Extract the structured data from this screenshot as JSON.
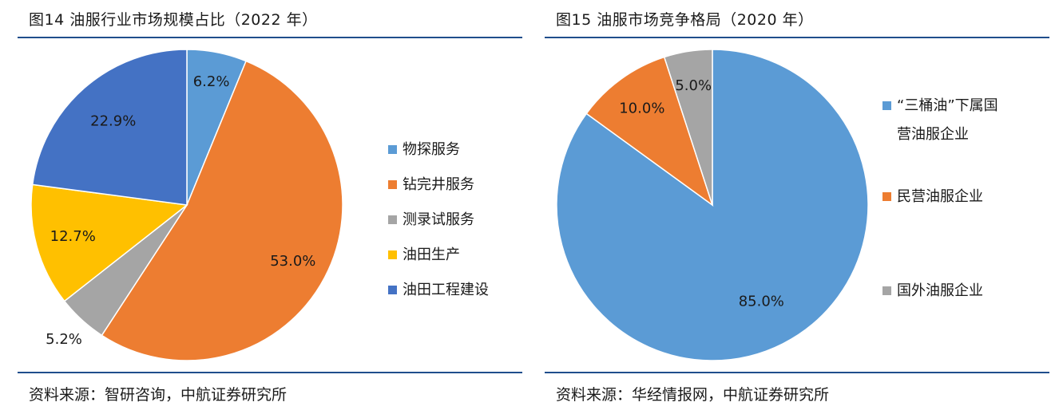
{
  "left": {
    "title": "图14  油服行业市场规模占比（2022 年）",
    "source": "资料来源：智研咨询，中航证券研究所"
  },
  "right": {
    "title": "图15  油服市场竞争格局（2020 年）",
    "source": "资料来源：华经情报网，中航证券研究所"
  },
  "chart_data": [
    {
      "type": "pie",
      "title": "",
      "categories": [
        "物探服务",
        "钻完井服务",
        "测录试服务",
        "油田生产",
        "油田工程建设"
      ],
      "values": [
        6.2,
        53.0,
        5.2,
        12.7,
        22.9
      ],
      "labels": [
        "6.2%",
        "53.0%",
        "5.2%",
        "12.7%",
        "22.9%"
      ],
      "colors": [
        "#5b9bd5",
        "#ed7d31",
        "#a5a5a5",
        "#ffc000",
        "#4472c4"
      ],
      "legend": "right"
    },
    {
      "type": "pie",
      "title": "",
      "categories": [
        "“三桶油”下属国营油服企业",
        "民营油服企业",
        "国外油服企业"
      ],
      "legend_lines": [
        [
          "“三桶油”下属国",
          "营油服企业"
        ],
        [
          "民营油服企业"
        ],
        [
          "国外油服企业"
        ]
      ],
      "values": [
        85.0,
        10.0,
        5.0
      ],
      "labels": [
        "85.0%",
        "10.0%",
        "5.0%"
      ],
      "colors": [
        "#5b9bd5",
        "#ed7d31",
        "#a5a5a5"
      ],
      "legend": "right"
    }
  ]
}
